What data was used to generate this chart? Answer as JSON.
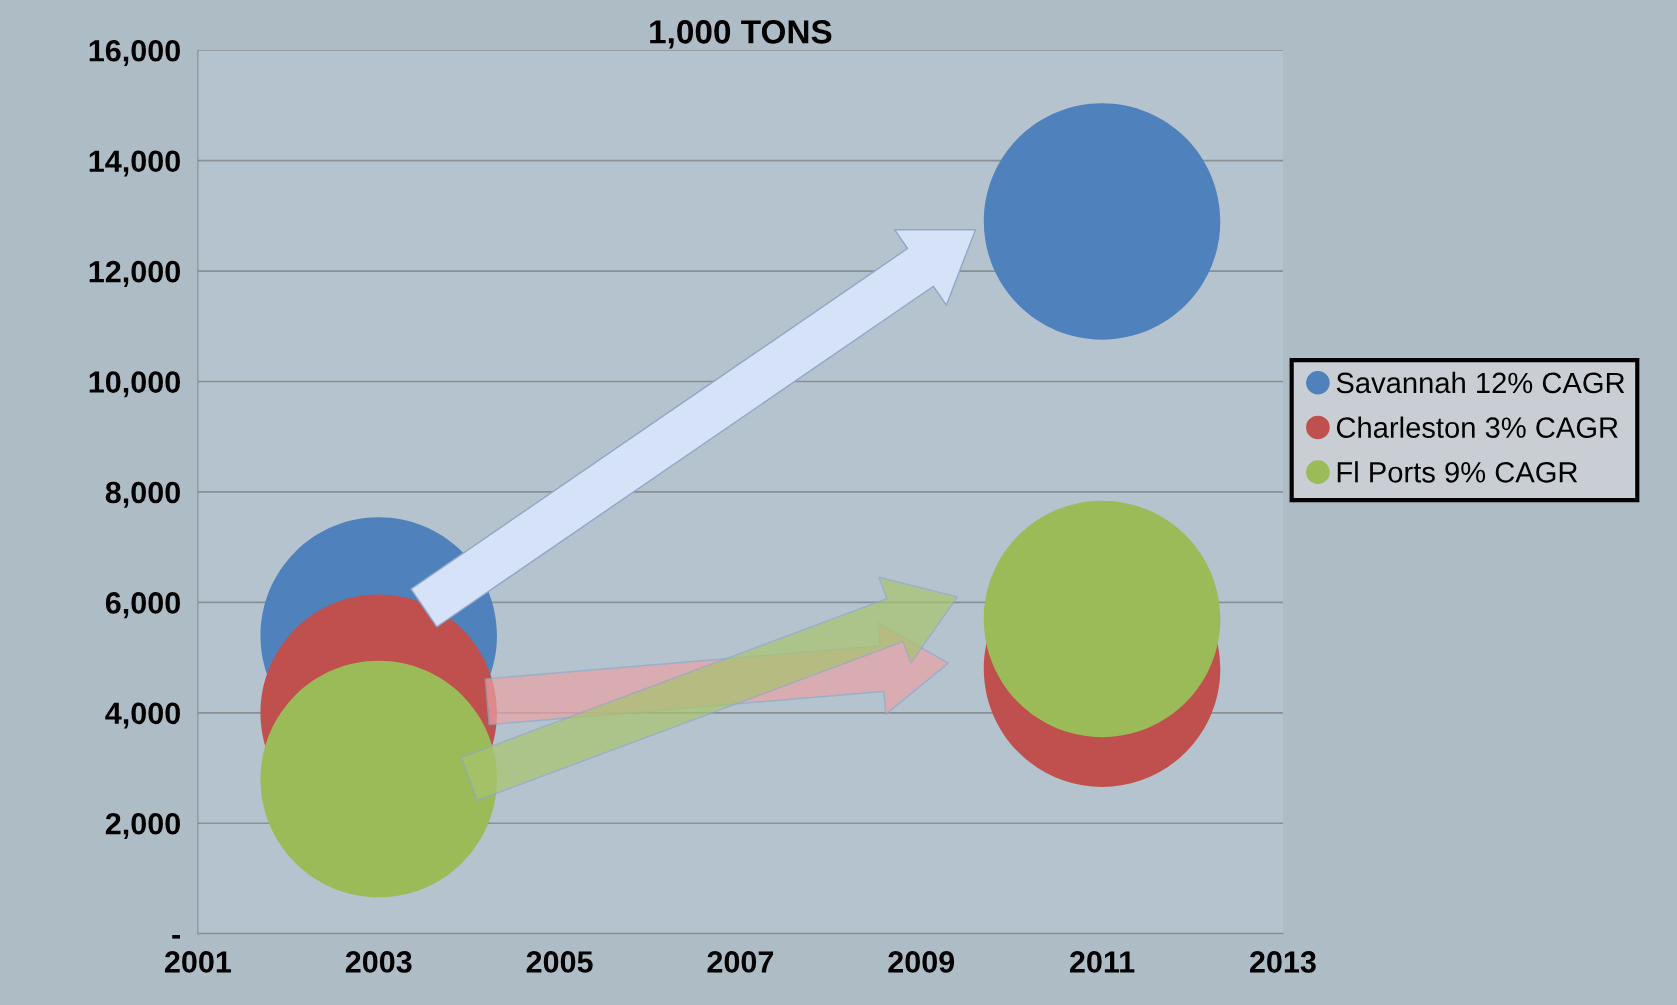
{
  "chart_data": {
    "type": "bubble",
    "title": "1,000 TONS",
    "x": [
      2003,
      2011
    ],
    "series": [
      {
        "name": "Savannah 12% CAGR",
        "color": "#4f81bd",
        "values": [
          5400,
          12900
        ],
        "sizes": [
          1,
          1
        ]
      },
      {
        "name": "Charleston 3% CAGR",
        "color": "#c0504d",
        "values": [
          4000,
          4800
        ],
        "sizes": [
          1,
          1
        ]
      },
      {
        "name": "Fl Ports 9% CAGR",
        "color": "#9bbb59",
        "values": [
          2800,
          5700
        ],
        "sizes": [
          1,
          1
        ]
      }
    ],
    "xlim": [
      2001,
      2013
    ],
    "xticks": [
      2001,
      2003,
      2005,
      2007,
      2009,
      2011,
      2013
    ],
    "ylim": [
      0,
      16000
    ],
    "yticks": [
      {
        "value": 0,
        "label": "-"
      },
      {
        "value": 2000,
        "label": "2,000"
      },
      {
        "value": 4000,
        "label": "4,000"
      },
      {
        "value": 6000,
        "label": "6,000"
      },
      {
        "value": 8000,
        "label": "8,000"
      },
      {
        "value": 10000,
        "label": "10,000"
      },
      {
        "value": 12000,
        "label": "12,000"
      },
      {
        "value": 14000,
        "label": "14,000"
      },
      {
        "value": 16000,
        "label": "16,000"
      }
    ],
    "grid": "y",
    "legend": "right"
  }
}
